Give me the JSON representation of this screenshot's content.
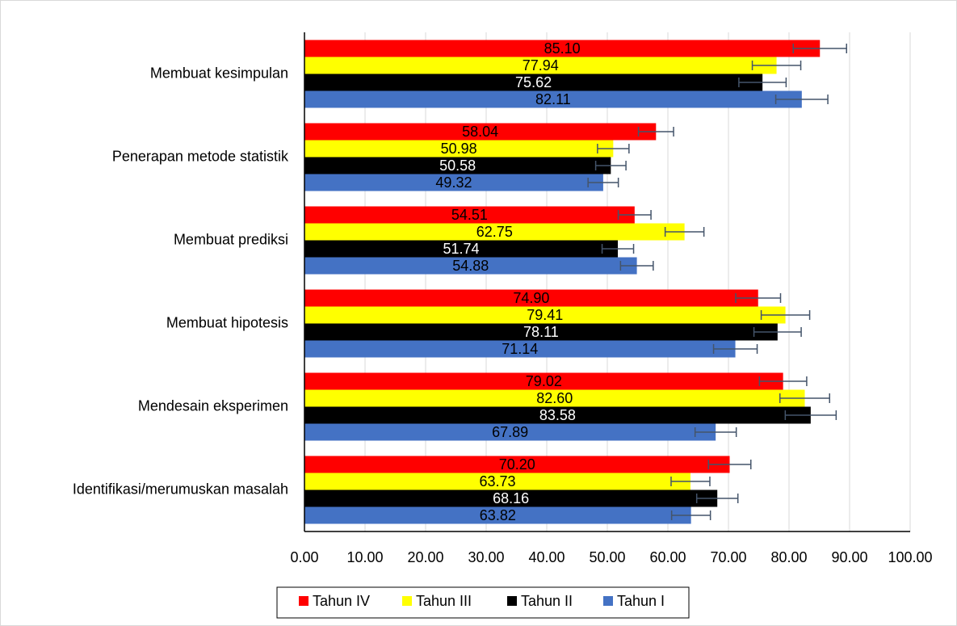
{
  "chart_data": {
    "type": "bar",
    "orientation": "horizontal",
    "categories": [
      "Membuat kesimpulan",
      "Penerapan metode statistik",
      "Membuat prediksi",
      "Membuat hipotesis",
      "Mendesain eksperimen",
      "Identifikasi/merumuskan masalah"
    ],
    "series": [
      {
        "name": "Tahun IV",
        "color": "#ff0000",
        "values": [
          85.1,
          58.04,
          54.51,
          74.9,
          79.02,
          70.2
        ],
        "value_labels": [
          "85.10",
          "58.04",
          "54.51",
          "74.90",
          "79.02",
          "70.20"
        ],
        "errors": [
          4.4,
          2.9,
          2.7,
          3.7,
          3.9,
          3.5
        ]
      },
      {
        "name": "Tahun III",
        "color": "#ffff00",
        "values": [
          77.94,
          50.98,
          62.75,
          79.41,
          82.6,
          63.73
        ],
        "value_labels": [
          "77.94",
          "50.98",
          "62.75",
          "79.41",
          "82.60",
          "63.73"
        ],
        "errors": [
          4.0,
          2.6,
          3.2,
          4.0,
          4.1,
          3.2
        ]
      },
      {
        "name": "Tahun II",
        "color": "#000000",
        "values": [
          75.62,
          50.58,
          51.74,
          78.11,
          83.58,
          68.16
        ],
        "value_labels": [
          "75.62",
          "50.58",
          "51.74",
          "78.11",
          "83.58",
          "68.16"
        ],
        "errors": [
          3.9,
          2.5,
          2.6,
          3.9,
          4.2,
          3.4
        ]
      },
      {
        "name": "Tahun I",
        "color": "#4472c4",
        "values": [
          82.11,
          49.32,
          54.88,
          71.14,
          67.89,
          63.82
        ],
        "value_labels": [
          "82.11",
          "49.32",
          "54.88",
          "71.14",
          "67.89",
          "63.82"
        ],
        "errors": [
          4.3,
          2.5,
          2.7,
          3.6,
          3.4,
          3.2
        ]
      }
    ],
    "xlim": [
      0,
      100
    ],
    "xticks": [
      {
        "value": 0,
        "label": "0.00"
      },
      {
        "value": 10,
        "label": "10.00"
      },
      {
        "value": 20,
        "label": "20.00"
      },
      {
        "value": 30,
        "label": "30.00"
      },
      {
        "value": 40,
        "label": "40.00"
      },
      {
        "value": 50,
        "label": "50.00"
      },
      {
        "value": 60,
        "label": "60.00"
      },
      {
        "value": 70,
        "label": "70.00"
      },
      {
        "value": 80,
        "label": "80.00"
      },
      {
        "value": 90,
        "label": "90.00"
      },
      {
        "value": 100,
        "label": "100.00"
      }
    ],
    "grid": true,
    "legend": "bottom"
  }
}
